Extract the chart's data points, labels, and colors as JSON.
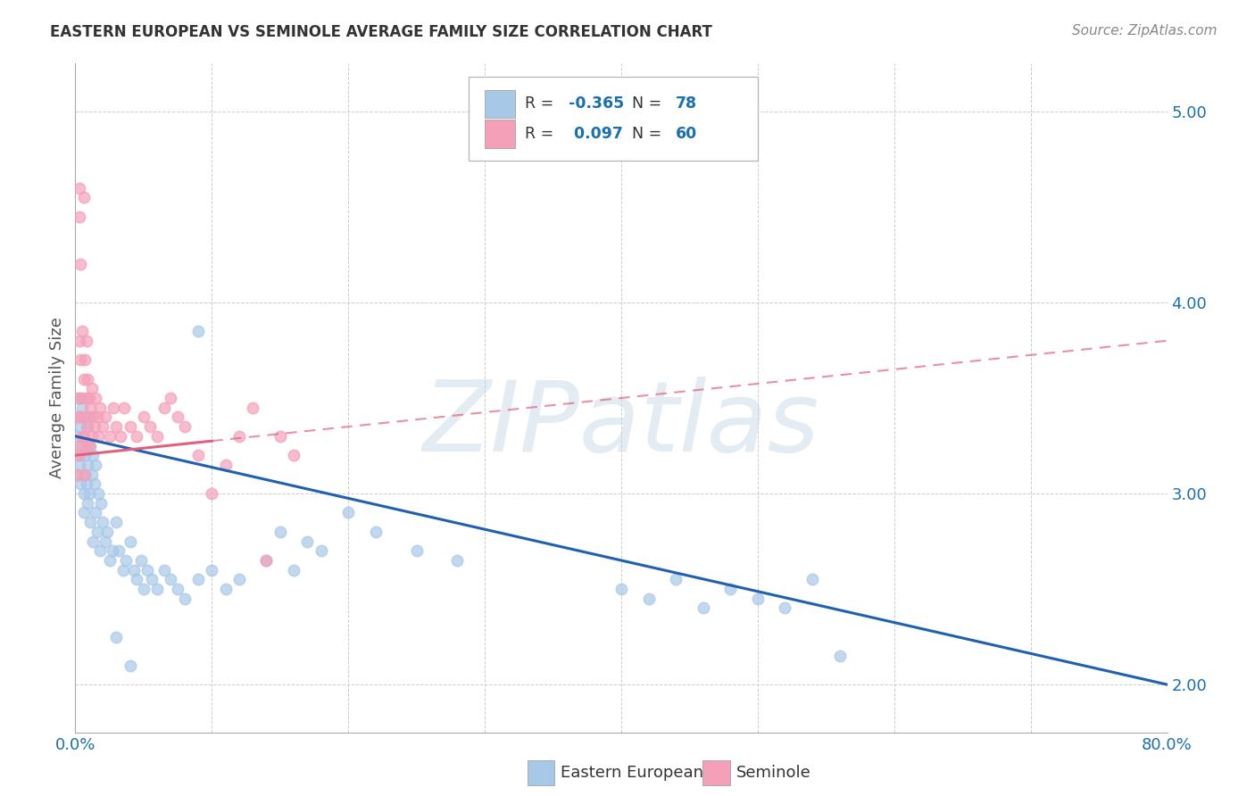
{
  "title": "EASTERN EUROPEAN VS SEMINOLE AVERAGE FAMILY SIZE CORRELATION CHART",
  "source": "Source: ZipAtlas.com",
  "ylabel": "Average Family Size",
  "xlim": [
    0.0,
    0.8
  ],
  "ylim": [
    1.75,
    5.25
  ],
  "yticks": [
    2.0,
    3.0,
    4.0,
    5.0
  ],
  "xticks": [
    0.0,
    0.1,
    0.2,
    0.3,
    0.4,
    0.5,
    0.6,
    0.7,
    0.8
  ],
  "xticklabels": [
    "0.0%",
    "",
    "",
    "",
    "",
    "",
    "",
    "",
    "80.0%"
  ],
  "color_blue": "#a8c8e8",
  "color_pink": "#f4a0b8",
  "line_blue": "#2060b0",
  "line_pink": "#e06080",
  "background_color": "#ffffff",
  "grid_color": "#cccccc",
  "eastern_europeans": [
    [
      0.001,
      3.3
    ],
    [
      0.002,
      3.2
    ],
    [
      0.002,
      3.1
    ],
    [
      0.003,
      3.5
    ],
    [
      0.003,
      3.4
    ],
    [
      0.003,
      3.15
    ],
    [
      0.004,
      3.35
    ],
    [
      0.004,
      3.05
    ],
    [
      0.005,
      3.25
    ],
    [
      0.005,
      3.45
    ],
    [
      0.006,
      3.0
    ],
    [
      0.006,
      2.9
    ],
    [
      0.007,
      3.2
    ],
    [
      0.007,
      3.1
    ],
    [
      0.008,
      3.35
    ],
    [
      0.008,
      3.05
    ],
    [
      0.009,
      3.15
    ],
    [
      0.009,
      2.95
    ],
    [
      0.01,
      3.4
    ],
    [
      0.01,
      3.0
    ],
    [
      0.011,
      3.25
    ],
    [
      0.011,
      2.85
    ],
    [
      0.012,
      3.1
    ],
    [
      0.013,
      3.2
    ],
    [
      0.013,
      2.75
    ],
    [
      0.014,
      3.05
    ],
    [
      0.015,
      3.15
    ],
    [
      0.015,
      2.9
    ],
    [
      0.016,
      2.8
    ],
    [
      0.017,
      3.0
    ],
    [
      0.018,
      2.7
    ],
    [
      0.019,
      2.95
    ],
    [
      0.02,
      2.85
    ],
    [
      0.022,
      2.75
    ],
    [
      0.023,
      2.8
    ],
    [
      0.025,
      2.65
    ],
    [
      0.027,
      2.7
    ],
    [
      0.03,
      2.85
    ],
    [
      0.032,
      2.7
    ],
    [
      0.035,
      2.6
    ],
    [
      0.037,
      2.65
    ],
    [
      0.04,
      2.75
    ],
    [
      0.043,
      2.6
    ],
    [
      0.045,
      2.55
    ],
    [
      0.048,
      2.65
    ],
    [
      0.05,
      2.5
    ],
    [
      0.053,
      2.6
    ],
    [
      0.056,
      2.55
    ],
    [
      0.06,
      2.5
    ],
    [
      0.065,
      2.6
    ],
    [
      0.07,
      2.55
    ],
    [
      0.075,
      2.5
    ],
    [
      0.08,
      2.45
    ],
    [
      0.09,
      2.55
    ],
    [
      0.1,
      2.6
    ],
    [
      0.11,
      2.5
    ],
    [
      0.12,
      2.55
    ],
    [
      0.14,
      2.65
    ],
    [
      0.16,
      2.6
    ],
    [
      0.18,
      2.7
    ],
    [
      0.2,
      2.9
    ],
    [
      0.22,
      2.8
    ],
    [
      0.25,
      2.7
    ],
    [
      0.28,
      2.65
    ],
    [
      0.09,
      3.85
    ],
    [
      0.15,
      2.8
    ],
    [
      0.17,
      2.75
    ],
    [
      0.03,
      2.25
    ],
    [
      0.04,
      2.1
    ],
    [
      0.4,
      2.5
    ],
    [
      0.42,
      2.45
    ],
    [
      0.44,
      2.55
    ],
    [
      0.46,
      2.4
    ],
    [
      0.48,
      2.5
    ],
    [
      0.5,
      2.45
    ],
    [
      0.52,
      2.4
    ],
    [
      0.54,
      2.55
    ],
    [
      0.56,
      2.15
    ]
  ],
  "seminole": [
    [
      0.001,
      3.4
    ],
    [
      0.002,
      3.5
    ],
    [
      0.002,
      3.25
    ],
    [
      0.002,
      3.1
    ],
    [
      0.003,
      4.6
    ],
    [
      0.003,
      4.45
    ],
    [
      0.003,
      3.8
    ],
    [
      0.003,
      3.2
    ],
    [
      0.004,
      4.2
    ],
    [
      0.004,
      3.7
    ],
    [
      0.004,
      3.4
    ],
    [
      0.005,
      3.85
    ],
    [
      0.005,
      3.5
    ],
    [
      0.005,
      3.3
    ],
    [
      0.006,
      4.55
    ],
    [
      0.006,
      3.6
    ],
    [
      0.006,
      3.3
    ],
    [
      0.007,
      3.7
    ],
    [
      0.007,
      3.4
    ],
    [
      0.007,
      3.1
    ],
    [
      0.008,
      3.8
    ],
    [
      0.008,
      3.5
    ],
    [
      0.008,
      3.25
    ],
    [
      0.009,
      3.6
    ],
    [
      0.009,
      3.35
    ],
    [
      0.01,
      3.5
    ],
    [
      0.01,
      3.25
    ],
    [
      0.011,
      3.45
    ],
    [
      0.012,
      3.55
    ],
    [
      0.012,
      3.3
    ],
    [
      0.013,
      3.4
    ],
    [
      0.014,
      3.35
    ],
    [
      0.015,
      3.5
    ],
    [
      0.016,
      3.4
    ],
    [
      0.017,
      3.3
    ],
    [
      0.018,
      3.45
    ],
    [
      0.02,
      3.35
    ],
    [
      0.022,
      3.4
    ],
    [
      0.025,
      3.3
    ],
    [
      0.028,
      3.45
    ],
    [
      0.03,
      3.35
    ],
    [
      0.033,
      3.3
    ],
    [
      0.036,
      3.45
    ],
    [
      0.04,
      3.35
    ],
    [
      0.045,
      3.3
    ],
    [
      0.05,
      3.4
    ],
    [
      0.055,
      3.35
    ],
    [
      0.06,
      3.3
    ],
    [
      0.065,
      3.45
    ],
    [
      0.07,
      3.5
    ],
    [
      0.075,
      3.4
    ],
    [
      0.08,
      3.35
    ],
    [
      0.09,
      3.2
    ],
    [
      0.1,
      3.0
    ],
    [
      0.11,
      3.15
    ],
    [
      0.12,
      3.3
    ],
    [
      0.13,
      3.45
    ],
    [
      0.14,
      2.65
    ],
    [
      0.15,
      3.3
    ],
    [
      0.16,
      3.2
    ]
  ]
}
